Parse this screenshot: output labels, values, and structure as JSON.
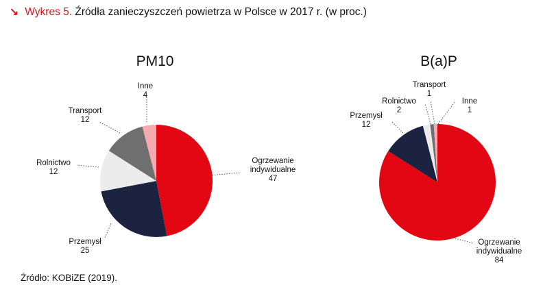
{
  "header": {
    "arrow_icon": "arrow-down-right-icon",
    "label": "Wykres 5.",
    "title": "Źródła zanieczyszczeń powietrza w Polsce w 2017 r. (w proc.)",
    "accent_color": "#d9141e"
  },
  "chart_data": [
    {
      "type": "pie",
      "title": "PM10",
      "slices": [
        {
          "label": [
            "Ogrzewanie",
            "indywidualne"
          ],
          "value": 47,
          "color": "#e30613"
        },
        {
          "label": [
            "Przemysł"
          ],
          "value": 25,
          "color": "#1c2340"
        },
        {
          "label": [
            "Rolnictwo"
          ],
          "value": 12,
          "color": "#ececec"
        },
        {
          "label": [
            "Transport"
          ],
          "value": 12,
          "color": "#6f6f6f"
        },
        {
          "label": [
            "Inne"
          ],
          "value": 4,
          "color": "#f6a9ae"
        }
      ]
    },
    {
      "type": "pie",
      "title": "B(a)P",
      "slices": [
        {
          "label": [
            "Ogrzewanie",
            "indywidualne"
          ],
          "value": 84,
          "color": "#e30613"
        },
        {
          "label": [
            "Przemysł"
          ],
          "value": 12,
          "color": "#1c2340"
        },
        {
          "label": [
            "Rolnictwo"
          ],
          "value": 2,
          "color": "#ececec"
        },
        {
          "label": [
            "Transport"
          ],
          "value": 1,
          "color": "#6f6f6f"
        },
        {
          "label": [
            "Inne"
          ],
          "value": 1,
          "color": "#f6a9ae"
        }
      ]
    }
  ],
  "source": "Źródło: KOBiZE (2019)."
}
